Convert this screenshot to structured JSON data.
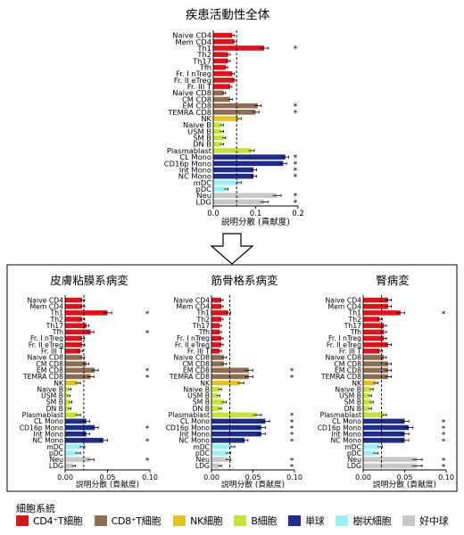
{
  "top_title": "疾患活動性全体",
  "panel_titles": [
    "皮膚粘膜系病変",
    "筋骨格系病変",
    "腎病変"
  ],
  "legend": {
    "title": "細胞系統",
    "items": [
      {
        "label": "CD4⁺T細胞",
        "color": "#d9161f"
      },
      {
        "label": "CD8⁺T細胞",
        "color": "#8d6e52"
      },
      {
        "label": "NK細胞",
        "color": "#e3c320"
      },
      {
        "label": "B細胞",
        "color": "#c5e23a"
      },
      {
        "label": "単球",
        "color": "#1f2d8a"
      },
      {
        "label": "樹状細胞",
        "color": "#9cf0f5"
      },
      {
        "label": "好中球",
        "color": "#c8c8c8"
      }
    ]
  },
  "chart_data": [
    {
      "type": "bar",
      "orientation": "horizontal",
      "title": "疾患活動性全体",
      "xlabel": "説明分散 (貢献度)",
      "xlim": [
        0,
        0.2
      ],
      "xticks": [
        "0.0",
        "0.1",
        "0.2"
      ],
      "reference_line": 0.055,
      "categories": [
        "Naive CD4",
        "Mem CD4",
        "Th1",
        "Th2",
        "Th17",
        "Tfh",
        "Fr. I nTreg",
        "Fr. II eTreg",
        "Fr. III T",
        "Naive CD8",
        "CM CD8",
        "EM CD8",
        "TEMRA CD8",
        "NK",
        "Naive B",
        "USM B",
        "SM B",
        "DN B",
        "Plasmablast",
        "CL Mono",
        "CD16p Mono",
        "Int Mono",
        "NC Mono",
        "mDC",
        "pDC",
        "Neu",
        "LDG"
      ],
      "groups": [
        0,
        0,
        0,
        0,
        0,
        0,
        0,
        0,
        0,
        1,
        1,
        1,
        1,
        2,
        3,
        3,
        3,
        3,
        3,
        4,
        4,
        4,
        4,
        5,
        5,
        6,
        6
      ],
      "values": [
        0.045,
        0.05,
        0.12,
        0.035,
        0.035,
        0.03,
        0.045,
        0.05,
        0.04,
        0.025,
        0.04,
        0.105,
        0.1,
        0.06,
        0.02,
        0.02,
        0.025,
        0.02,
        0.09,
        0.17,
        0.165,
        0.095,
        0.095,
        0.06,
        0.03,
        0.15,
        0.12
      ],
      "errors": [
        0.005,
        0.005,
        0.01,
        0.005,
        0.005,
        0.004,
        0.005,
        0.005,
        0.004,
        0.004,
        0.005,
        0.008,
        0.008,
        0.006,
        0.004,
        0.004,
        0.004,
        0.004,
        0.007,
        0.008,
        0.008,
        0.007,
        0.007,
        0.006,
        0.005,
        0.01,
        0.009
      ],
      "significance": [
        "",
        "",
        "*",
        "",
        "",
        "",
        "",
        "",
        "",
        "",
        "",
        "*",
        "*",
        "",
        "",
        "",
        "",
        "",
        "",
        "*",
        "*",
        "*",
        "*",
        "",
        "",
        "*",
        "*"
      ]
    },
    {
      "type": "bar",
      "orientation": "horizontal",
      "title": "皮膚粘膜系病変",
      "xlabel": "説明分散 (貢献度)",
      "xlim": [
        0,
        0.1
      ],
      "xticks": [
        "0.00",
        "0.05",
        "0.10"
      ],
      "reference_line": 0.022,
      "categories": [
        "Naive CD4",
        "Mem CD4",
        "Th1",
        "Th2",
        "Th17",
        "Tfh",
        "Fr. I nTreg",
        "Fr. II eTreg",
        "Fr. III T",
        "Naive CD8",
        "CM CD8",
        "EM CD8",
        "TEMRA CD8",
        "NK",
        "Naive B",
        "USM B",
        "SM B",
        "DN B",
        "Plasmablast",
        "CL Mono",
        "CD16p Mono",
        "Int Mono",
        "NC Mono",
        "mDC",
        "pDC",
        "Neu",
        "LDG"
      ],
      "groups": [
        0,
        0,
        0,
        0,
        0,
        0,
        0,
        0,
        0,
        1,
        1,
        1,
        1,
        2,
        3,
        3,
        3,
        3,
        3,
        4,
        4,
        4,
        4,
        5,
        5,
        6,
        6
      ],
      "values": [
        0.02,
        0.02,
        0.05,
        0.02,
        0.025,
        0.03,
        0.02,
        0.02,
        0.018,
        0.02,
        0.025,
        0.035,
        0.03,
        0.015,
        0.005,
        0.004,
        0.006,
        0.005,
        0.015,
        0.025,
        0.035,
        0.025,
        0.045,
        0.02,
        0.015,
        0.03,
        0.01
      ],
      "errors": [
        0.003,
        0.003,
        0.005,
        0.003,
        0.003,
        0.004,
        0.003,
        0.003,
        0.003,
        0.003,
        0.003,
        0.004,
        0.004,
        0.003,
        0.002,
        0.002,
        0.002,
        0.002,
        0.003,
        0.004,
        0.004,
        0.004,
        0.005,
        0.003,
        0.003,
        0.004,
        0.002
      ],
      "significance": [
        "",
        "",
        "*",
        "",
        "",
        "*",
        "",
        "",
        "",
        "",
        "",
        "*",
        "*",
        "",
        "",
        "",
        "",
        "",
        "",
        "",
        "*",
        "",
        "*",
        "",
        "",
        "*",
        ""
      ]
    },
    {
      "type": "bar",
      "orientation": "horizontal",
      "title": "筋骨格系病変",
      "xlabel": "説明分散 (貢献度)",
      "xlim": [
        0,
        0.1
      ],
      "xticks": [
        "0.00",
        "0.05",
        "0.10"
      ],
      "reference_line": 0.022,
      "categories": [
        "Naive CD4",
        "Mem CD4",
        "Th1",
        "Th2",
        "Th17",
        "Tfh",
        "Fr. I nTreg",
        "Fr. II eTreg",
        "Fr. III T",
        "Naive CD8",
        "CM CD8",
        "EM CD8",
        "TEMRA CD8",
        "NK",
        "Naive B",
        "USM B",
        "SM B",
        "DN B",
        "Plasmablast",
        "CL Mono",
        "CD16p Mono",
        "Int Mono",
        "NC Mono",
        "mDC",
        "pDC",
        "Neu",
        "LDG"
      ],
      "groups": [
        0,
        0,
        0,
        0,
        0,
        0,
        0,
        0,
        0,
        1,
        1,
        1,
        1,
        2,
        3,
        3,
        3,
        3,
        3,
        4,
        4,
        4,
        4,
        5,
        5,
        6,
        6
      ],
      "values": [
        0.012,
        0.012,
        0.02,
        0.012,
        0.01,
        0.01,
        0.012,
        0.012,
        0.01,
        0.015,
        0.015,
        0.045,
        0.045,
        0.035,
        0.01,
        0.008,
        0.015,
        0.01,
        0.055,
        0.065,
        0.06,
        0.06,
        0.04,
        0.025,
        0.02,
        0.02,
        0.01
      ],
      "errors": [
        0.002,
        0.002,
        0.003,
        0.002,
        0.002,
        0.002,
        0.002,
        0.002,
        0.002,
        0.003,
        0.003,
        0.005,
        0.005,
        0.004,
        0.002,
        0.002,
        0.003,
        0.002,
        0.005,
        0.005,
        0.005,
        0.005,
        0.004,
        0.003,
        0.003,
        0.003,
        0.002
      ],
      "significance": [
        "",
        "",
        "",
        "",
        "",
        "",
        "",
        "",
        "",
        "",
        "",
        "*",
        "*",
        "",
        "",
        "",
        "",
        "",
        "*",
        "*",
        "*",
        "*",
        "*",
        "",
        "",
        "*",
        "*"
      ]
    },
    {
      "type": "bar",
      "orientation": "horizontal",
      "title": "腎病変",
      "xlabel": "説明分散 (貢献度)",
      "xlim": [
        0,
        0.1
      ],
      "xticks": [
        "0.00",
        "0.05",
        "0.10"
      ],
      "reference_line": 0.022,
      "categories": [
        "Naive CD4",
        "Mem CD4",
        "Th1",
        "Th2",
        "Th17",
        "Tfh",
        "Fr. I nTreg",
        "Fr. II eTreg",
        "Fr. III T",
        "Naive CD8",
        "CM CD8",
        "EM CD8",
        "TEMRA CD8",
        "NK",
        "Naive B",
        "USM B",
        "SM B",
        "DN B",
        "Plasmablast",
        "CL Mono",
        "CD16p Mono",
        "Int Mono",
        "NC Mono",
        "mDC",
        "pDC",
        "Neu",
        "LDG"
      ],
      "groups": [
        0,
        0,
        0,
        0,
        0,
        0,
        0,
        0,
        0,
        1,
        1,
        1,
        1,
        2,
        3,
        3,
        3,
        3,
        3,
        4,
        4,
        4,
        4,
        5,
        5,
        6,
        6
      ],
      "values": [
        0.03,
        0.03,
        0.045,
        0.02,
        0.025,
        0.025,
        0.025,
        0.03,
        0.02,
        0.025,
        0.03,
        0.03,
        0.03,
        0.015,
        0.01,
        0.008,
        0.01,
        0.008,
        0.025,
        0.05,
        0.055,
        0.05,
        0.05,
        0.02,
        0.015,
        0.065,
        0.065
      ],
      "errors": [
        0.004,
        0.004,
        0.005,
        0.003,
        0.003,
        0.003,
        0.003,
        0.004,
        0.003,
        0.003,
        0.004,
        0.004,
        0.004,
        0.003,
        0.002,
        0.002,
        0.002,
        0.002,
        0.003,
        0.005,
        0.005,
        0.005,
        0.005,
        0.003,
        0.003,
        0.006,
        0.006
      ],
      "significance": [
        "",
        "",
        "*",
        "",
        "",
        "",
        "",
        "",
        "",
        "",
        "",
        "",
        "",
        "",
        "",
        "",
        "",
        "",
        "",
        "*",
        "*",
        "*",
        "*",
        "",
        "",
        "*",
        "*"
      ]
    }
  ]
}
